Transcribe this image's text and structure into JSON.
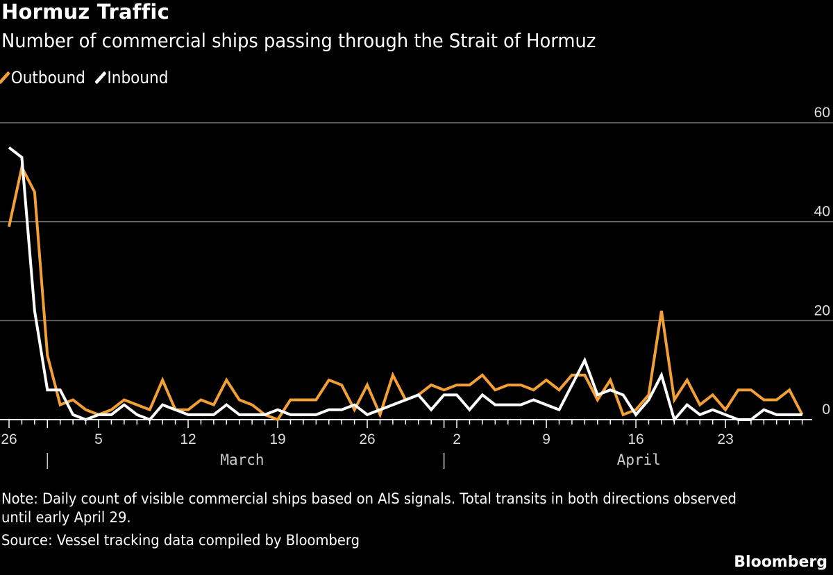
{
  "title": "Hormuz Traffic",
  "subtitle": "Number of commercial ships passing through the Strait of Hormuz",
  "note": "Note: Daily count of visible commercial ships based on AIS signals. Total transits in both directions observed until early April 29.",
  "source": "Source: Vessel tracking data compiled by Bloomberg",
  "logo": "Bloomberg",
  "chart_data": {
    "type": "line",
    "title": "Hormuz Traffic",
    "subtitle": "Number of commercial ships passing through the Strait of Hormuz",
    "x_start": "Feb 26",
    "x_end": "Apr 29",
    "x_tick_labels": [
      "26",
      "5",
      "12",
      "19",
      "26",
      "2",
      "9",
      "16",
      "23"
    ],
    "x_tick_index": [
      0,
      7,
      14,
      21,
      28,
      35,
      42,
      49,
      56
    ],
    "month_labels": [
      "March",
      "April"
    ],
    "month_start_index": [
      3,
      34
    ],
    "y_ticks": [
      0,
      20,
      40,
      60
    ],
    "ylim": [
      0,
      60
    ],
    "grid": true,
    "legend_position": "top-left",
    "series": [
      {
        "name": "Outbound",
        "color": "#f29f38",
        "values": [
          39,
          51,
          46,
          13,
          3,
          4,
          2,
          1,
          2,
          4,
          3,
          2,
          8,
          2,
          2,
          4,
          3,
          8,
          4,
          3,
          1,
          0,
          4,
          4,
          4,
          8,
          7,
          2,
          7,
          1,
          9,
          4,
          5,
          7,
          6,
          7,
          7,
          9,
          6,
          7,
          7,
          6,
          8,
          6,
          9,
          9,
          4,
          8,
          1,
          2,
          5,
          22,
          4,
          8,
          3,
          5,
          2,
          6,
          6,
          4,
          4,
          6,
          1
        ]
      },
      {
        "name": "Inbound",
        "color": "#ffffff",
        "values": [
          55,
          53,
          22,
          6,
          6,
          1,
          0,
          1,
          1,
          3,
          1,
          0,
          3,
          2,
          1,
          1,
          1,
          3,
          1,
          1,
          1,
          2,
          1,
          1,
          1,
          2,
          2,
          3,
          1,
          2,
          3,
          4,
          5,
          2,
          5,
          5,
          2,
          5,
          3,
          3,
          3,
          4,
          3,
          2,
          7,
          12,
          5,
          6,
          5,
          1,
          4,
          9,
          0,
          3,
          1,
          2,
          1,
          0,
          0,
          2,
          1,
          1,
          1
        ]
      }
    ]
  }
}
